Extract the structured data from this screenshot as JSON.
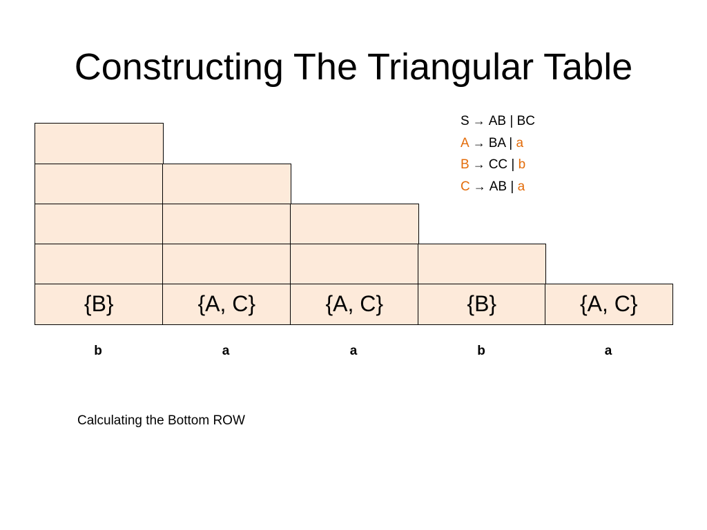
{
  "slide": {
    "title": "Constructing The Triangular Table",
    "caption": "Calculating the Bottom ROW"
  },
  "grammar": {
    "arrow": "→",
    "rules": [
      {
        "lhs": "S",
        "lhs_terminal": false,
        "rhs": [
          {
            "t": "AB",
            "terminal": false
          },
          {
            "t": "BC",
            "terminal": false
          }
        ]
      },
      {
        "lhs": "A",
        "lhs_terminal": true,
        "rhs": [
          {
            "t": "BA",
            "terminal": false
          },
          {
            "t": "a",
            "terminal": true
          }
        ]
      },
      {
        "lhs": "B",
        "lhs_terminal": true,
        "rhs": [
          {
            "t": "CC",
            "terminal": false
          },
          {
            "t": "b",
            "terminal": true
          }
        ]
      },
      {
        "lhs": "C",
        "lhs_terminal": true,
        "rhs": [
          {
            "t": "AB",
            "terminal": false
          },
          {
            "t": "a",
            "terminal": true
          }
        ]
      }
    ],
    "separator": "|",
    "terminal_color": "#e36c0a"
  },
  "table": {
    "fill_color": "#fdeada",
    "rows": [
      [
        "",
        "",
        "",
        "",
        ""
      ],
      [
        "",
        "",
        "",
        ""
      ],
      [
        "",
        "",
        ""
      ],
      [
        "",
        ""
      ],
      [
        ""
      ]
    ],
    "bottom_row": [
      "{B}",
      "{A, C}",
      "{A, C}",
      "{B}",
      "{A, C}"
    ]
  },
  "input": [
    "b",
    "a",
    "a",
    "b",
    "a"
  ]
}
